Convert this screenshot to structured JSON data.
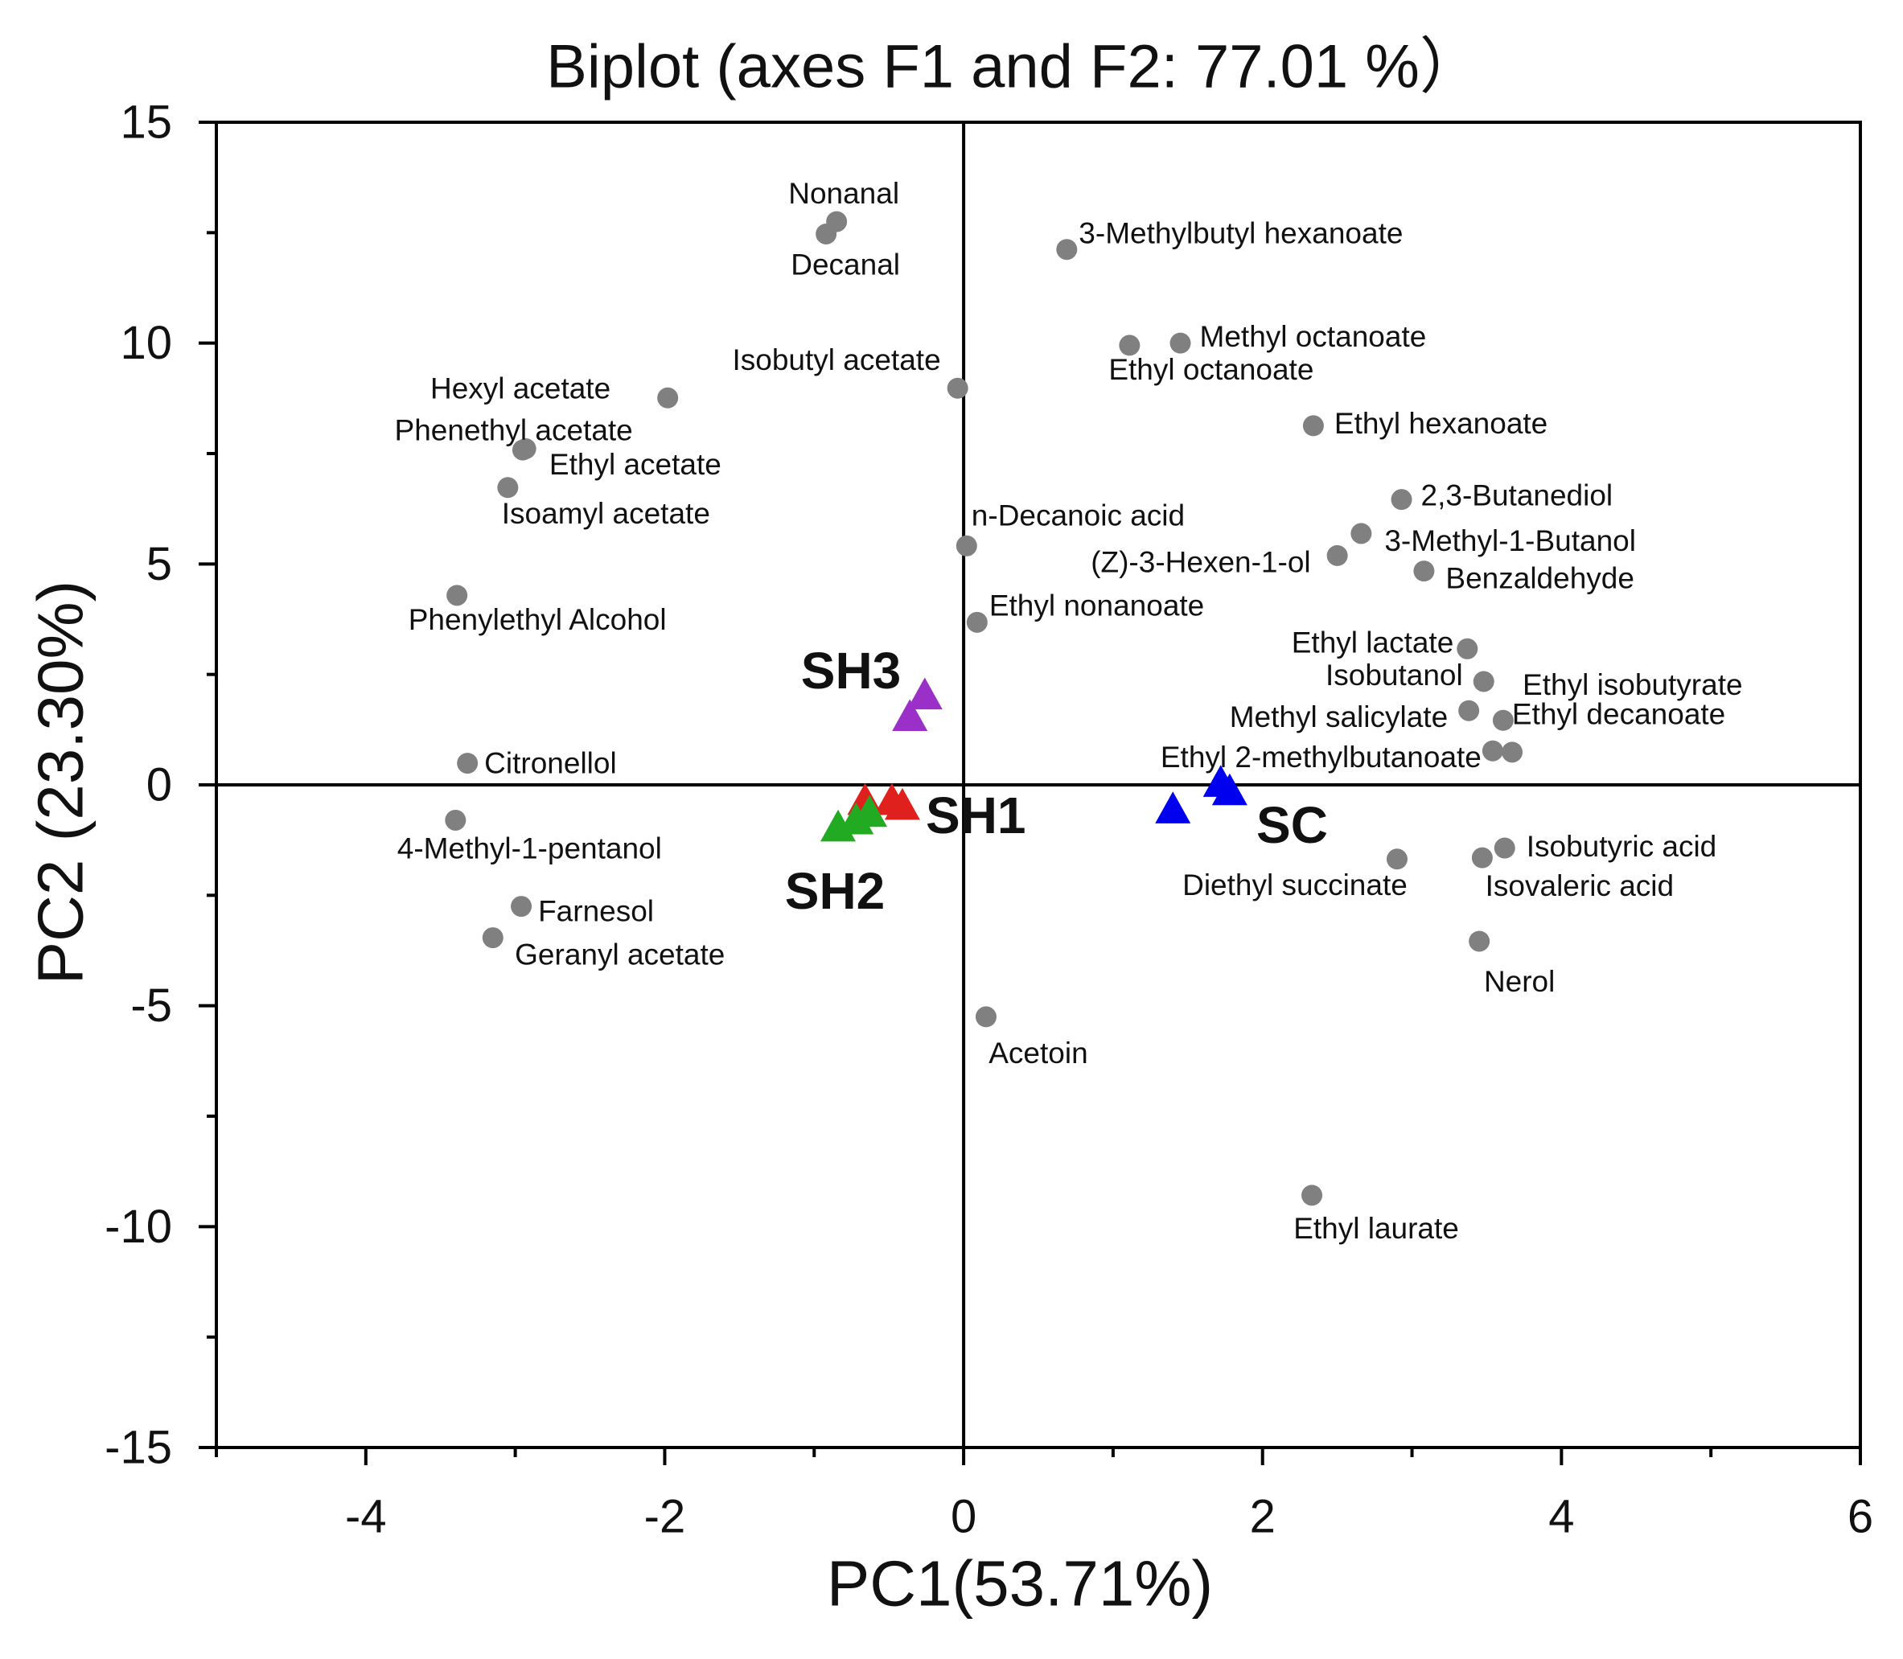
{
  "chart_data": {
    "type": "scatter",
    "title": "Biplot (axes F1 and F2: 77.01 %）",
    "xlabel": "PC1(53.71%)",
    "ylabel": "PC2 (23.30%)",
    "xlim": [
      -5,
      6
    ],
    "ylim": [
      -15,
      15
    ],
    "xticks": [
      -4,
      -2,
      0,
      2,
      4,
      6
    ],
    "yticks": [
      15,
      10,
      5,
      0,
      -5,
      -10,
      -15
    ],
    "grid": false,
    "variables": [
      {
        "name": "Nonanal",
        "x": -0.85,
        "y": 12.75
      },
      {
        "name": "Decanal",
        "x": -0.92,
        "y": 12.47
      },
      {
        "name": "3-Methylbutyl hexanoate",
        "x": 0.69,
        "y": 12.12
      },
      {
        "name": "Methyl octanoate",
        "x": 1.45,
        "y": 10.0
      },
      {
        "name": "Ethyl octanoate",
        "x": 1.11,
        "y": 9.95
      },
      {
        "name": "Isobutyl acetate",
        "x": -0.04,
        "y": 8.98
      },
      {
        "name": "Hexyl acetate",
        "x": -1.98,
        "y": 8.76
      },
      {
        "name": "Ethyl hexanoate",
        "x": 2.34,
        "y": 8.13
      },
      {
        "name": "Phenethyl acetate",
        "x": -2.93,
        "y": 7.61
      },
      {
        "name": "Ethyl acetate",
        "x": -2.95,
        "y": 7.58
      },
      {
        "name": "Isoamyl acetate",
        "x": -3.05,
        "y": 6.73
      },
      {
        "name": "2,3-Butanediol",
        "x": 2.93,
        "y": 6.46
      },
      {
        "name": "3-Methyl-1-Butanol",
        "x": 2.66,
        "y": 5.69
      },
      {
        "name": "n-Decanoic acid",
        "x": 0.02,
        "y": 5.41
      },
      {
        "name": "(Z)-3-Hexen-1-ol",
        "x": 2.5,
        "y": 5.19
      },
      {
        "name": "Benzaldehyde",
        "x": 3.08,
        "y": 4.84
      },
      {
        "name": "Phenylethyl Alcohol",
        "x": -3.39,
        "y": 4.29
      },
      {
        "name": "Ethyl nonanoate",
        "x": 0.09,
        "y": 3.68
      },
      {
        "name": "Ethyl lactate",
        "x": 3.37,
        "y": 3.08
      },
      {
        "name": "Isobutanol",
        "x": 3.48,
        "y": 2.34
      },
      {
        "name": "Ethyl isobutyrate",
        "x": 3.67,
        "y": 0.74
      },
      {
        "name": "Methyl salicylate",
        "x": 3.38,
        "y": 1.68
      },
      {
        "name": "Ethyl decanoate",
        "x": 3.61,
        "y": 1.46
      },
      {
        "name": "Ethyl 2-methylbutanoate",
        "x": 3.54,
        "y": 0.77
      },
      {
        "name": "Citronellol",
        "x": -3.32,
        "y": 0.49
      },
      {
        "name": "4-Methyl-1-pentanol",
        "x": -3.4,
        "y": -0.8
      },
      {
        "name": "Isobutyric acid",
        "x": 3.62,
        "y": -1.43
      },
      {
        "name": "Isovaleric acid",
        "x": 3.47,
        "y": -1.65
      },
      {
        "name": "Diethyl succinate",
        "x": 2.9,
        "y": -1.68
      },
      {
        "name": "Farnesol",
        "x": -2.96,
        "y": -2.75
      },
      {
        "name": "Geranyl acetate",
        "x": -3.15,
        "y": -3.46
      },
      {
        "name": "Nerol",
        "x": 3.45,
        "y": -3.54
      },
      {
        "name": "Acetoin",
        "x": 0.15,
        "y": -5.25
      },
      {
        "name": "Ethyl laurate",
        "x": 2.33,
        "y": -9.29
      }
    ],
    "samples": [
      {
        "name": "SH3",
        "color": "#9b30c8",
        "points": [
          [
            -0.26,
            2.03
          ],
          [
            -0.36,
            1.54
          ]
        ]
      },
      {
        "name": "SH1",
        "color": "#e0201c",
        "points": [
          [
            -0.66,
            -0.36
          ],
          [
            -0.48,
            -0.36
          ],
          [
            -0.41,
            -0.47
          ]
        ]
      },
      {
        "name": "SH2",
        "color": "#22aa22",
        "points": [
          [
            -0.84,
            -0.96
          ],
          [
            -0.72,
            -0.8
          ],
          [
            -0.63,
            -0.63
          ]
        ]
      },
      {
        "name": "SC",
        "color": "#0000ee",
        "points": [
          [
            1.4,
            -0.55
          ],
          [
            1.72,
            0.05
          ],
          [
            1.78,
            -0.14
          ]
        ]
      }
    ],
    "variable_color": "#808080"
  }
}
